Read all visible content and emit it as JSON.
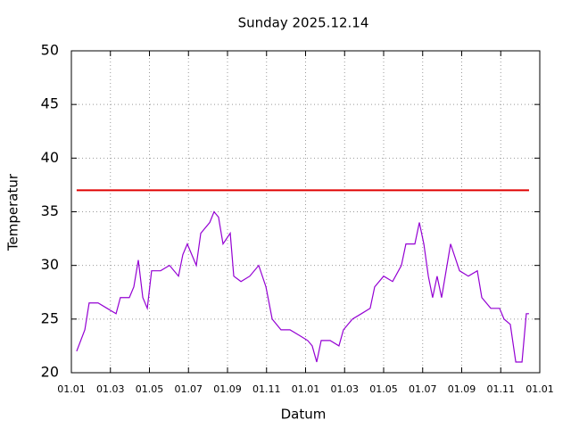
{
  "chart_data": {
    "type": "line",
    "title": "Sunday 2025.12.14",
    "x_label": "Datum",
    "y_label": "Temperatur",
    "xlim": [
      0,
      24
    ],
    "ylim": [
      20,
      50
    ],
    "xticks": [
      {
        "value": 0,
        "label": "01.01"
      },
      {
        "value": 2,
        "label": "01.03"
      },
      {
        "value": 4,
        "label": "01.05"
      },
      {
        "value": 6,
        "label": "01.07"
      },
      {
        "value": 8,
        "label": "01.09"
      },
      {
        "value": 10,
        "label": "01.11"
      },
      {
        "value": 12,
        "label": "01.01"
      },
      {
        "value": 14,
        "label": "01.03"
      },
      {
        "value": 16,
        "label": "01.05"
      },
      {
        "value": 18,
        "label": "01.07"
      },
      {
        "value": 20,
        "label": "01.09"
      },
      {
        "value": 22,
        "label": "01.11"
      },
      {
        "value": 24,
        "label": "01.01"
      }
    ],
    "yticks": [
      20,
      25,
      30,
      35,
      40,
      45,
      50
    ],
    "grid": true,
    "series": [
      {
        "color": "#9400d3",
        "x": [
          0.27,
          0.69,
          0.91,
          1.37,
          1.83,
          2.29,
          2.51,
          2.97,
          3.2,
          3.43,
          3.66,
          3.89,
          4.11,
          4.57,
          5.03,
          5.49,
          5.71,
          5.94,
          6.17,
          6.4,
          6.63,
          7.09,
          7.31,
          7.54,
          7.77,
          8.14,
          8.32,
          8.69,
          9.14,
          9.6,
          9.97,
          10.29,
          10.74,
          11.2,
          11.66,
          12.11,
          12.34,
          12.57,
          12.8,
          13.26,
          13.71,
          13.94,
          14.4,
          14.86,
          15.31,
          15.54,
          16,
          16.46,
          16.91,
          17.14,
          17.6,
          17.83,
          18.06,
          18.29,
          18.51,
          18.74,
          18.97,
          19.43,
          19.89,
          20.34,
          20.8,
          21.03,
          21.49,
          21.94,
          22.17,
          22.49,
          22.77,
          23.09,
          23.31,
          23.45
        ],
        "values": [
          22,
          24,
          26.5,
          26.5,
          26,
          25.5,
          27,
          27,
          28,
          30.5,
          27,
          26,
          29.5,
          29.5,
          30,
          29,
          31,
          32,
          31,
          30,
          33,
          34,
          35,
          34.5,
          32,
          33,
          29,
          28.5,
          29,
          30,
          28,
          25,
          24,
          24,
          23.5,
          23,
          22.5,
          21,
          23,
          23,
          22.5,
          24,
          25,
          25.5,
          26,
          28,
          29,
          28.5,
          30,
          32,
          32,
          34,
          32,
          29,
          27,
          29,
          27,
          32,
          29.5,
          29,
          29.5,
          27,
          26,
          26,
          25,
          24.5,
          21,
          21,
          25.5,
          25.5
        ]
      },
      {
        "color": "#e00000",
        "x": [
          0.27,
          23.45
        ],
        "values": [
          37,
          37
        ]
      }
    ]
  }
}
